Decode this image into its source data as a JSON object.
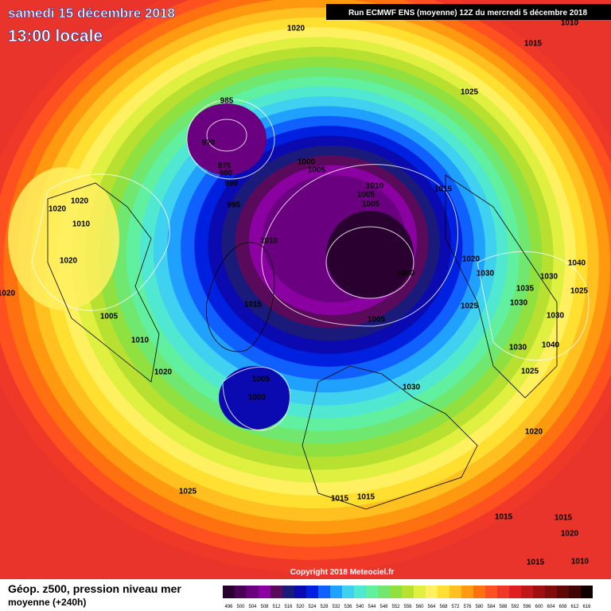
{
  "header": {
    "date": "samedi 15 décembre 2018",
    "time": "13:00 locale",
    "run": "Run ECMWF ENS (moyenne) 12Z du mercredi 5 décembre 2018"
  },
  "isobar_labels": [
    "1020",
    "1010",
    "1015",
    "1025",
    "985",
    "970",
    "975",
    "980",
    "990",
    "1000",
    "1005",
    "1010",
    "1005",
    "1005",
    "1015",
    "995",
    "1020",
    "1020",
    "1010",
    "1010",
    "1020",
    "1020",
    "1030",
    "1040",
    "1000",
    "1035",
    "1030",
    "1025",
    "1020",
    "1015",
    "1025",
    "1030",
    "1005",
    "1005",
    "1030",
    "1010",
    "1030",
    "1040",
    "1020",
    "1025",
    "1005",
    "1030",
    "1000",
    "1020",
    "1025",
    "1015",
    "1015",
    "1015",
    "1015",
    "1020",
    "1010",
    "1015"
  ],
  "copyright": "Copyright 2018 Meteociel.fr",
  "legend": {
    "title": "Géop. z500, pression niveau mer",
    "subtitle": "moyenne  (+240h)"
  },
  "colorbar": {
    "ticks": [
      496,
      500,
      504,
      508,
      512,
      516,
      520,
      524,
      528,
      532,
      536,
      540,
      544,
      548,
      552,
      556,
      560,
      564,
      568,
      572,
      576,
      580,
      584,
      588,
      592,
      596,
      600,
      604,
      608,
      612,
      616
    ],
    "colors": [
      "#2a0030",
      "#4a0058",
      "#6a0080",
      "#8a00a0",
      "#5a0a5a",
      "#1a1a7a",
      "#0a0ab0",
      "#0020e0",
      "#1060ff",
      "#20a0ff",
      "#40d0f0",
      "#50e8d0",
      "#60f0a0",
      "#70e870",
      "#90e040",
      "#b8e030",
      "#e0f040",
      "#fff060",
      "#ffe030",
      "#ffc020",
      "#ff9a10",
      "#ff7010",
      "#ff5020",
      "#f03828",
      "#e02020",
      "#c01818",
      "#a01010",
      "#800c0c",
      "#600808",
      "#400404",
      "#100000"
    ]
  }
}
